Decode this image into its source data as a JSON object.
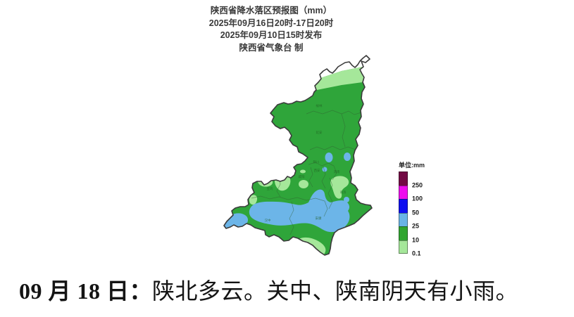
{
  "header": {
    "title": "陕西省降水落区预报图（mm）",
    "valid_period": "2025年09月16日20时-17日20时",
    "issued": "2025年09月10日15时发布",
    "producer": "陕西省气象台 制"
  },
  "legend": {
    "unit_label": "单位:mm",
    "items": [
      {
        "label": "250",
        "color": "#730944"
      },
      {
        "label": "100",
        "color": "#ee0cee"
      },
      {
        "label": "50",
        "color": "#0d0df0"
      },
      {
        "label": "25",
        "color": "#69b4e6"
      },
      {
        "label": "10",
        "color": "#2fa52f"
      },
      {
        "label": "0.1",
        "color": "#a5e79a"
      }
    ]
  },
  "map": {
    "region_name": "陕西省",
    "fill_levels": {
      "none": "#ffffff",
      "light": "#a5e79a",
      "moderate": "#2fa53a",
      "heavy": "#6cb5e8"
    },
    "outline_color": "#3b3b3b",
    "cities": [
      {
        "name": "榆林"
      },
      {
        "name": "延安"
      },
      {
        "name": "铜川"
      },
      {
        "name": "渭南"
      },
      {
        "name": "西安"
      },
      {
        "name": "咸阳"
      },
      {
        "name": "宝鸡"
      },
      {
        "name": "商洛"
      },
      {
        "name": "安康"
      },
      {
        "name": "汉中"
      }
    ]
  },
  "footer": {
    "date_part": "09 月 18 日：",
    "forecast_text": "陕北多云。关中、陕南阴天有小雨。"
  }
}
